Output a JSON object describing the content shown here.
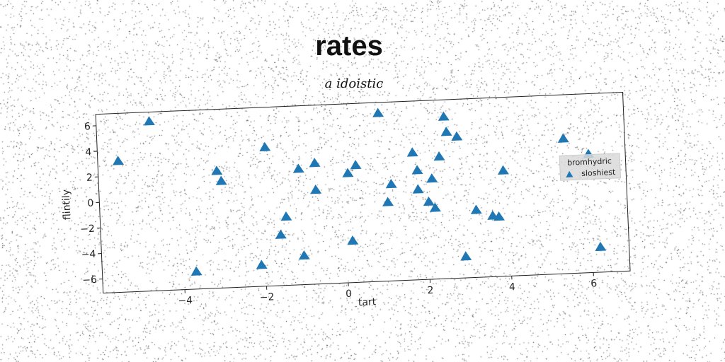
{
  "chart_data": {
    "type": "scatter",
    "title": "rates",
    "subtitle": "a idoistic",
    "xlabel": "tart",
    "ylabel": "flintily",
    "xlim": [
      -6.0,
      6.9
    ],
    "ylim": [
      -7.1,
      6.9
    ],
    "xticks": [
      -4,
      -2,
      0,
      2,
      4,
      6
    ],
    "yticks": [
      -6,
      -4,
      -2,
      0,
      2,
      4,
      6
    ],
    "grid": false,
    "legend": {
      "title": "bromhydric",
      "placement": "center-right",
      "entries": [
        "sloshiest"
      ]
    },
    "series": [
      {
        "name": "sloshiest",
        "marker": "triangle",
        "color": "#1f77b4",
        "points": [
          [
            -5.5,
            3.2
          ],
          [
            -4.7,
            6.2
          ],
          [
            -3.7,
            -5.7
          ],
          [
            -3.1,
            2.1
          ],
          [
            -3.0,
            1.3
          ],
          [
            -2.1,
            -5.4
          ],
          [
            -1.9,
            3.8
          ],
          [
            -1.6,
            -3.1
          ],
          [
            -1.45,
            -1.7
          ],
          [
            -1.1,
            2.0
          ],
          [
            -1.05,
            -4.8
          ],
          [
            -0.7,
            2.4
          ],
          [
            -0.7,
            0.3
          ],
          [
            0.1,
            1.5
          ],
          [
            0.15,
            -3.8
          ],
          [
            0.3,
            2.1
          ],
          [
            0.9,
            6.1
          ],
          [
            1.05,
            -0.9
          ],
          [
            1.15,
            0.5
          ],
          [
            1.7,
            2.9
          ],
          [
            1.8,
            1.5
          ],
          [
            1.8,
            0.0
          ],
          [
            2.05,
            -1.0
          ],
          [
            2.15,
            0.8
          ],
          [
            2.2,
            -1.5
          ],
          [
            2.35,
            2.5
          ],
          [
            2.5,
            5.6
          ],
          [
            2.55,
            4.4
          ],
          [
            2.8,
            4.0
          ],
          [
            2.9,
            -5.4
          ],
          [
            3.2,
            -1.8
          ],
          [
            3.6,
            -2.3
          ],
          [
            3.75,
            -2.4
          ],
          [
            3.9,
            1.2
          ],
          [
            5.4,
            3.5
          ],
          [
            6.0,
            2.2
          ],
          [
            6.2,
            -5.1
          ]
        ]
      }
    ]
  }
}
